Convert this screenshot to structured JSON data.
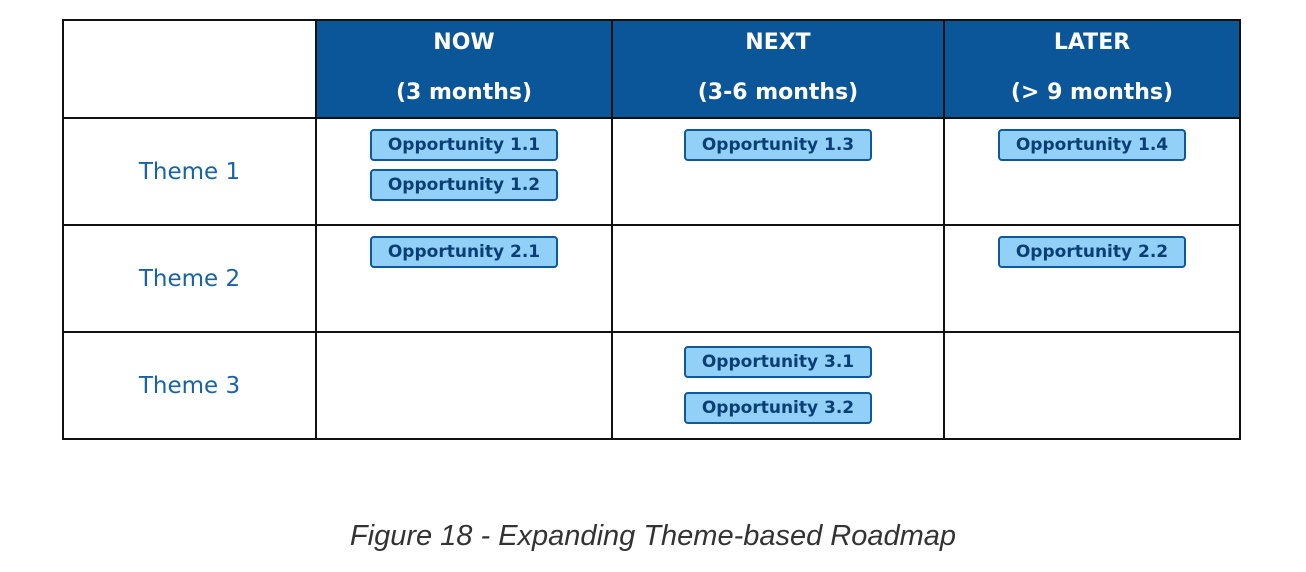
{
  "columns": [
    {
      "name": "NOW",
      "subtitle": "(3 months)"
    },
    {
      "name": "NEXT",
      "subtitle": "(3-6 months)"
    },
    {
      "name": "LATER",
      "subtitle": "(> 9 months)"
    }
  ],
  "rows": [
    {
      "theme": "Theme 1",
      "cells": [
        [
          "Opportunity 1.1",
          "Opportunity 1.2"
        ],
        [
          "Opportunity 1.3"
        ],
        [
          "Opportunity 1.4"
        ]
      ]
    },
    {
      "theme": "Theme 2",
      "cells": [
        [
          "Opportunity 2.1"
        ],
        [],
        [
          "Opportunity 2.2"
        ]
      ]
    },
    {
      "theme": "Theme 3",
      "cells": [
        [],
        [
          "Opportunity 3.1",
          "Opportunity 3.2"
        ],
        []
      ]
    }
  ],
  "caption": "Figure 18 - Expanding Theme-based Roadmap",
  "colors": {
    "header_bg": "#0b5599",
    "header_text": "#ffffff",
    "theme_text": "#1763a6",
    "chip_fill": "#93d0f7",
    "chip_border": "#0d5a9a",
    "chip_text": "#0a3f75",
    "grid_line": "#111111"
  }
}
